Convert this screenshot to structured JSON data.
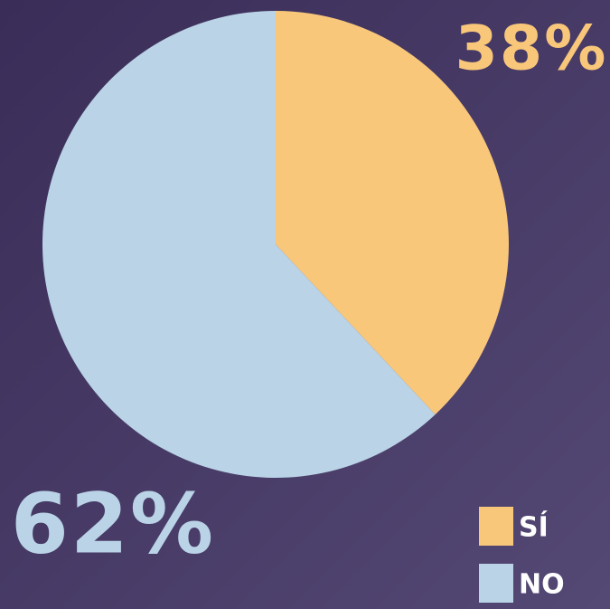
{
  "chart_data": {
    "type": "pie",
    "categories": [
      "SÍ",
      "NO"
    ],
    "values": [
      38,
      62
    ],
    "value_labels": [
      "38%",
      "62%"
    ],
    "colors": [
      "#f9c77a",
      "#bad3e6"
    ],
    "start_angle": "top",
    "direction": "clockwise",
    "legend": "bottom-right"
  }
}
